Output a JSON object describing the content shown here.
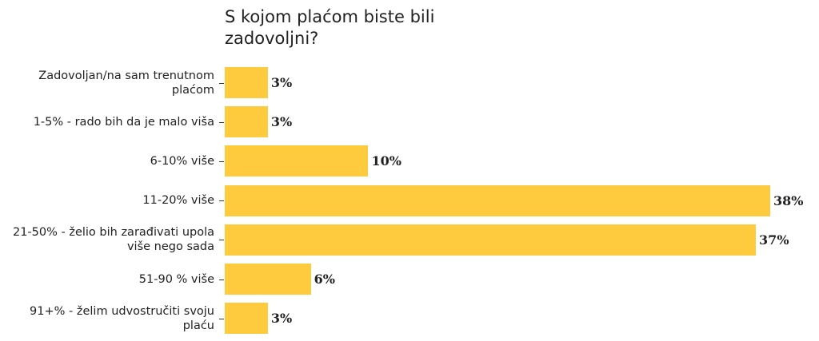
{
  "chart_data": {
    "type": "bar",
    "orientation": "horizontal",
    "title": "S kojom plaćom biste bili zadovoljni?",
    "categories": [
      "Zadovoljan/na sam trenutnom plaćom",
      "1-5% - rado bih da je malo viša",
      "6-10% više",
      "11-20% više",
      "21-50% - želio bih zarađivati upola više nego sada",
      "51-90 % više",
      "91+% - želim udvostručiti svoju plaću"
    ],
    "values": [
      3,
      3,
      10,
      38,
      37,
      6,
      3
    ],
    "value_labels": [
      "3%",
      "3%",
      "10%",
      "38%",
      "37%",
      "6%",
      "3%"
    ],
    "color": "#fecb3e"
  }
}
